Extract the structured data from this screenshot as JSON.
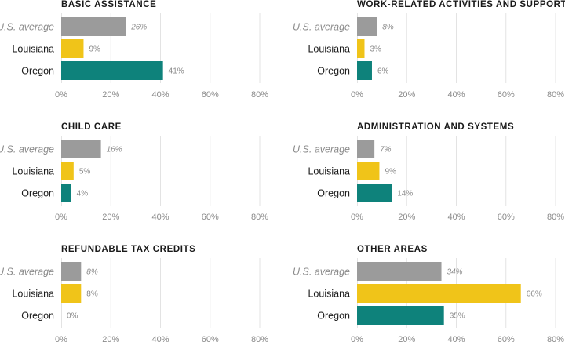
{
  "chart_data": [
    {
      "type": "bar",
      "title": "BASIC ASSISTANCE",
      "categories": [
        "U.S. average",
        "Louisiana",
        "Oregon"
      ],
      "values": [
        26,
        9,
        41
      ],
      "value_labels": [
        "26%",
        "9%",
        "41%"
      ],
      "xlim": [
        0,
        80
      ],
      "xticks": [
        "0%",
        "20%",
        "40%",
        "60%",
        "80%"
      ],
      "grid": true
    },
    {
      "type": "bar",
      "title": "WORK-RELATED ACTIVITIES AND SUPPORT",
      "categories": [
        "U.S. average",
        "Louisiana",
        "Oregon"
      ],
      "values": [
        8,
        3,
        6
      ],
      "value_labels": [
        "8%",
        "3%",
        "6%"
      ],
      "xlim": [
        0,
        80
      ],
      "xticks": [
        "0%",
        "20%",
        "40%",
        "60%",
        "80%"
      ],
      "grid": true
    },
    {
      "type": "bar",
      "title": "CHILD CARE",
      "categories": [
        "U.S. average",
        "Louisiana",
        "Oregon"
      ],
      "values": [
        16,
        5,
        4
      ],
      "value_labels": [
        "16%",
        "5%",
        "4%"
      ],
      "xlim": [
        0,
        80
      ],
      "xticks": [
        "0%",
        "20%",
        "40%",
        "60%",
        "80%"
      ],
      "grid": true
    },
    {
      "type": "bar",
      "title": "ADMINISTRATION AND SYSTEMS",
      "categories": [
        "U.S. average",
        "Louisiana",
        "Oregon"
      ],
      "values": [
        7,
        9,
        14
      ],
      "value_labels": [
        "7%",
        "9%",
        "14%"
      ],
      "xlim": [
        0,
        80
      ],
      "xticks": [
        "0%",
        "20%",
        "40%",
        "60%",
        "80%"
      ],
      "grid": true
    },
    {
      "type": "bar",
      "title": "REFUNDABLE TAX CREDITS",
      "categories": [
        "U.S. average",
        "Louisiana",
        "Oregon"
      ],
      "values": [
        8,
        8,
        0
      ],
      "value_labels": [
        "8%",
        "8%",
        "0%"
      ],
      "xlim": [
        0,
        80
      ],
      "xticks": [
        "0%",
        "20%",
        "40%",
        "60%",
        "80%"
      ],
      "grid": true
    },
    {
      "type": "bar",
      "title": "OTHER AREAS",
      "categories": [
        "U.S. average",
        "Louisiana",
        "Oregon"
      ],
      "values": [
        34,
        66,
        35
      ],
      "value_labels": [
        "34%",
        "66%",
        "35%"
      ],
      "xlim": [
        0,
        80
      ],
      "xticks": [
        "0%",
        "20%",
        "40%",
        "60%",
        "80%"
      ],
      "grid": true
    }
  ],
  "colors": {
    "U.S. average": "#9b9b9b",
    "Louisiana": "#f0c419",
    "Oregon": "#0e827b"
  }
}
